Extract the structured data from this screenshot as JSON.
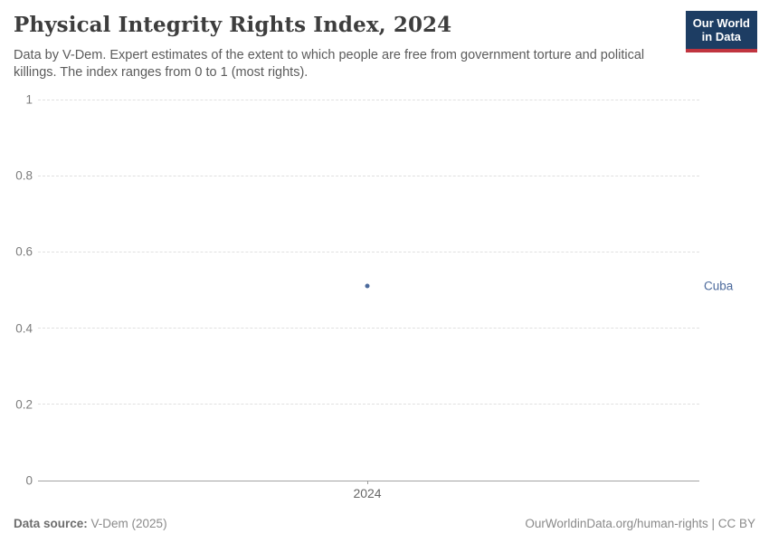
{
  "header": {
    "title": "Physical Integrity Rights Index, 2024",
    "subtitle": "Data by V-Dem. Expert estimates of the extent to which people are free from government torture and political killings. The index ranges from 0 to 1 (most rights).",
    "logo": {
      "line1": "Our World",
      "line2": "in Data",
      "bg_color": "#1d3d63",
      "accent_color": "#c0343f"
    }
  },
  "chart_data": {
    "type": "scatter",
    "series": [
      {
        "name": "Cuba",
        "x": [
          2024
        ],
        "y": [
          0.51
        ]
      }
    ],
    "x_ticks": [
      "2024"
    ],
    "y_ticks": [
      0,
      0.2,
      0.4,
      0.6,
      0.8,
      1
    ],
    "ylim": [
      0,
      1
    ],
    "grid": true,
    "x_frac": 0.498,
    "point_color": "#4c6a9c",
    "entity_label_color": "#4c6a9c",
    "title": "Physical Integrity Rights Index, 2024",
    "xlabel": "",
    "ylabel": ""
  },
  "footer": {
    "source_label": "Data source:",
    "source_value": " V-Dem (2025)",
    "credit": "OurWorldinData.org/human-rights | CC BY"
  }
}
